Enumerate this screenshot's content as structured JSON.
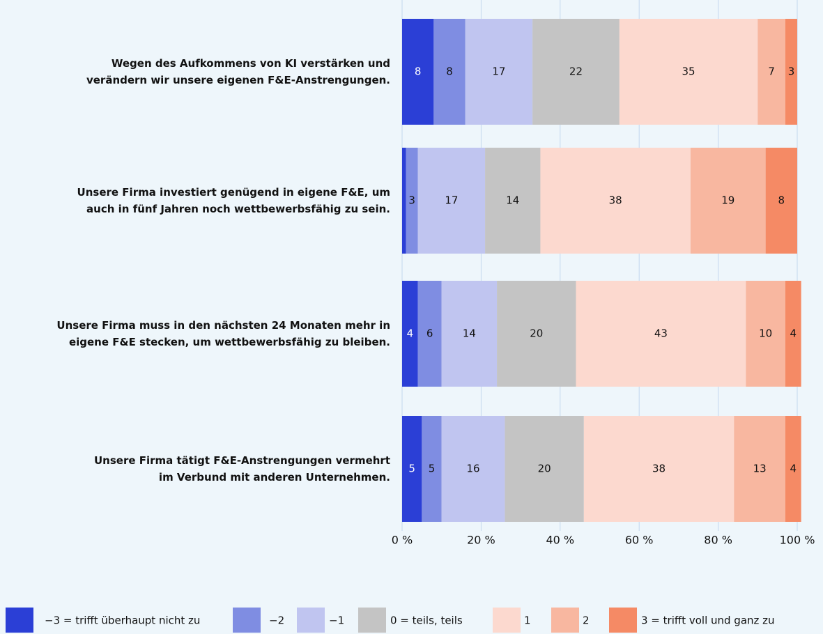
{
  "chart_data": {
    "type": "stacked-bar-horizontal",
    "categories": [
      "Wegen des Aufkommens von KI verstärken und\nverändern wir unsere eigenen F&E-Anstrengungen.",
      "Unsere Firma investiert genügend in eigene F&E, um\nauch in fünf Jahren noch wettbewerbsfähig zu sein.",
      "Unsere Firma muss in den nächsten 24 Monaten mehr in\neigene F&E stecken, um wettbewerbsfähig zu bleiben.",
      "Unsere Firma tätigt F&E-Anstrengungen vermehrt\nim Verbund mit anderen Unternehmen."
    ],
    "series": [
      {
        "name": "−3 = trifft überhaupt nicht zu",
        "color": "#2b3fd6",
        "values": [
          8,
          1,
          4,
          5
        ],
        "value_labels": [
          "8",
          null,
          "4",
          "5"
        ]
      },
      {
        "name": "−2",
        "color": "#7f8de2",
        "values": [
          8,
          3,
          6,
          5
        ]
      },
      {
        "name": "−1",
        "color": "#c0c5f0",
        "values": [
          17,
          17,
          14,
          16
        ]
      },
      {
        "name": "0 = teils, teils",
        "color": "#c4c4c4",
        "values": [
          22,
          14,
          20,
          20
        ]
      },
      {
        "name": "1",
        "color": "#fcd9cf",
        "values": [
          35,
          38,
          43,
          38
        ]
      },
      {
        "name": "2",
        "color": "#f8b7a0",
        "values": [
          7,
          19,
          10,
          13
        ]
      },
      {
        "name": "3 = trifft voll und ganz zu",
        "color": "#f58a65",
        "values": [
          3,
          8,
          4,
          4
        ]
      }
    ],
    "xlim": [
      0,
      100
    ],
    "xticks": [
      {
        "value": 0,
        "label": "0 %"
      },
      {
        "value": 20,
        "label": "20 %"
      },
      {
        "value": 40,
        "label": "40 %"
      },
      {
        "value": 60,
        "label": "60 %"
      },
      {
        "value": 80,
        "label": "80 %"
      },
      {
        "value": 100,
        "label": "100 %"
      }
    ],
    "grid": true,
    "legend": "bottom"
  }
}
